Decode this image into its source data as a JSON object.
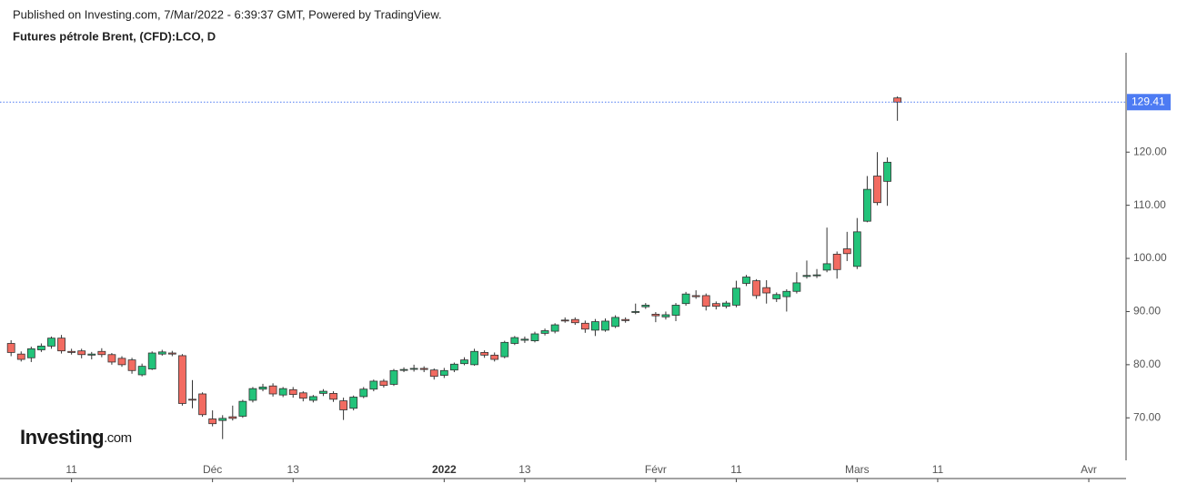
{
  "chart_data": {
    "type": "candlestick",
    "published": "Published on Investing.com, 7/Mar/2022 - 6:39:37 GMT, Powered by TradingView.",
    "title": "Futures pétrole Brent, (CFD):LCO, D",
    "logo_main": "Investing",
    "logo_suffix": ".com",
    "up_color": "#22c37a",
    "down_color": "#f26b61",
    "line_color": "#4d7bf3",
    "last_price": 129.41,
    "xlim": [
      -1.1,
      110.7
    ],
    "ylim": [
      62,
      138.7
    ],
    "xticks": [
      {
        "value": 6,
        "label": "11"
      },
      {
        "value": 20,
        "label": "Déc"
      },
      {
        "value": 28,
        "label": "13"
      },
      {
        "value": 43,
        "label": "2022"
      },
      {
        "value": 51,
        "label": "13"
      },
      {
        "value": 64,
        "label": "Févr"
      },
      {
        "value": 72,
        "label": "11"
      },
      {
        "value": 84,
        "label": "Mars"
      },
      {
        "value": 92,
        "label": "11"
      },
      {
        "value": 107,
        "label": "Avr"
      }
    ],
    "yticks": [
      {
        "value": 70,
        "label": "70.00"
      },
      {
        "value": 80,
        "label": "80.00"
      },
      {
        "value": 90,
        "label": "90.00"
      },
      {
        "value": 100,
        "label": "100.00"
      },
      {
        "value": 110,
        "label": "110.00"
      },
      {
        "value": 120,
        "label": "120.00"
      }
    ],
    "x": [
      0,
      1,
      2,
      3,
      4,
      5,
      6,
      7,
      8,
      9,
      10,
      11,
      12,
      13,
      14,
      15,
      16,
      17,
      18,
      19,
      20,
      21,
      22,
      23,
      24,
      25,
      26,
      27,
      28,
      29,
      30,
      31,
      32,
      33,
      34,
      35,
      36,
      37,
      38,
      39,
      40,
      41,
      42,
      43,
      44,
      45,
      46,
      47,
      48,
      49,
      50,
      51,
      52,
      53,
      54,
      55,
      56,
      57,
      58,
      59,
      60,
      61,
      62,
      63,
      64,
      65,
      66,
      67,
      68,
      69,
      70,
      71,
      72,
      73,
      74,
      75,
      76,
      77,
      78,
      79,
      80,
      81,
      82,
      83,
      84,
      85,
      86,
      87,
      88
    ],
    "open": [
      84.0,
      82.0,
      81.3,
      82.8,
      83.5,
      85.0,
      82.5,
      82.6,
      81.8,
      82.5,
      81.9,
      81.2,
      80.9,
      78.1,
      79.2,
      82.0,
      82.2,
      81.7,
      73.5,
      74.5,
      69.8,
      69.5,
      70.2,
      70.3,
      73.3,
      75.4,
      76.0,
      74.3,
      75.3,
      74.7,
      73.3,
      74.6,
      74.6,
      73.2,
      71.8,
      74.0,
      75.4,
      76.9,
      76.3,
      79.0,
      79.2,
      79.3,
      79.0,
      78.0,
      79.0,
      80.2,
      80.0,
      82.3,
      81.8,
      81.5,
      84.0,
      84.6,
      84.5,
      85.9,
      86.3,
      88.4,
      88.5,
      87.8,
      86.5,
      86.5,
      87.2,
      88.5,
      89.9,
      90.9,
      89.5,
      89.0,
      89.3,
      91.5,
      93.0,
      93.0,
      91.5,
      91.0,
      91.2,
      95.3,
      95.8,
      94.5,
      92.4,
      92.8,
      93.8,
      96.6,
      96.8,
      97.8,
      100.8,
      101.8,
      98.5,
      107.0,
      115.5,
      114.5,
      130.2
    ],
    "high": [
      84.6,
      82.5,
      83.4,
      84.0,
      85.3,
      85.6,
      83.0,
      83.0,
      82.4,
      83.1,
      82.2,
      81.6,
      81.3,
      80.2,
      82.5,
      82.8,
      82.6,
      82.0,
      77.1,
      74.8,
      71.4,
      70.5,
      72.3,
      73.4,
      75.8,
      76.4,
      76.5,
      75.8,
      75.8,
      75.0,
      74.3,
      75.4,
      75.0,
      73.8,
      74.2,
      75.8,
      77.2,
      77.3,
      79.2,
      79.5,
      80.0,
      79.7,
      79.3,
      79.4,
      80.4,
      81.4,
      83.0,
      82.7,
      82.3,
      84.5,
      85.4,
      85.3,
      86.2,
      86.8,
      87.8,
      88.9,
      88.9,
      88.3,
      88.6,
      88.7,
      89.3,
      88.9,
      91.5,
      91.6,
      89.9,
      90.0,
      91.6,
      93.7,
      94.0,
      93.4,
      91.9,
      92.0,
      95.8,
      96.9,
      96.1,
      95.9,
      93.6,
      94.2,
      97.4,
      99.6,
      98.0,
      105.8,
      101.3,
      105.0,
      107.6,
      115.5,
      120.0,
      119.0,
      130.5
    ],
    "low": [
      81.6,
      80.6,
      80.5,
      82.4,
      83.0,
      82.1,
      81.9,
      81.2,
      81.0,
      81.4,
      80.0,
      79.6,
      78.3,
      77.8,
      79.0,
      81.7,
      81.6,
      72.3,
      71.8,
      70.2,
      68.4,
      66.0,
      69.5,
      70.0,
      72.9,
      75.0,
      74.0,
      73.9,
      73.8,
      73.1,
      72.9,
      74.1,
      73.0,
      69.6,
      71.4,
      73.7,
      75.0,
      75.7,
      76.0,
      78.6,
      78.7,
      78.6,
      77.2,
      77.5,
      78.6,
      79.9,
      79.8,
      81.3,
      80.6,
      81.2,
      83.7,
      84.1,
      84.2,
      85.5,
      85.9,
      87.9,
      87.5,
      86.0,
      85.4,
      86.2,
      86.9,
      87.9,
      89.5,
      90.5,
      88.0,
      88.5,
      88.2,
      91.1,
      92.4,
      90.2,
      90.4,
      90.6,
      90.8,
      94.8,
      92.4,
      91.5,
      91.8,
      90.0,
      93.4,
      96.2,
      96.3,
      97.4,
      96.2,
      99.5,
      98.0,
      106.8,
      110.0,
      109.9,
      125.9
    ],
    "close": [
      82.3,
      81.0,
      83.0,
      83.5,
      85.0,
      82.6,
      82.3,
      81.9,
      82.0,
      81.9,
      80.5,
      80.0,
      78.9,
      79.7,
      82.2,
      82.4,
      82.0,
      72.7,
      73.4,
      70.6,
      68.9,
      69.9,
      69.9,
      73.1,
      75.5,
      75.8,
      74.5,
      75.5,
      74.4,
      73.7,
      74.0,
      75.0,
      73.5,
      71.5,
      73.9,
      75.4,
      76.9,
      76.1,
      78.9,
      79.1,
      79.3,
      79.1,
      77.8,
      78.9,
      80.1,
      80.9,
      82.5,
      81.8,
      81.0,
      84.2,
      85.1,
      84.8,
      85.8,
      86.4,
      87.5,
      88.3,
      87.9,
      86.7,
      88.1,
      88.2,
      88.9,
      88.3,
      90.0,
      91.2,
      89.2,
      89.4,
      91.2,
      93.3,
      92.8,
      91.0,
      91.0,
      91.6,
      94.4,
      96.5,
      93.0,
      93.5,
      93.2,
      93.8,
      95.4,
      96.8,
      96.9,
      99.0,
      97.9,
      100.9,
      105.0,
      113.0,
      110.5,
      118.1,
      129.41
    ]
  }
}
